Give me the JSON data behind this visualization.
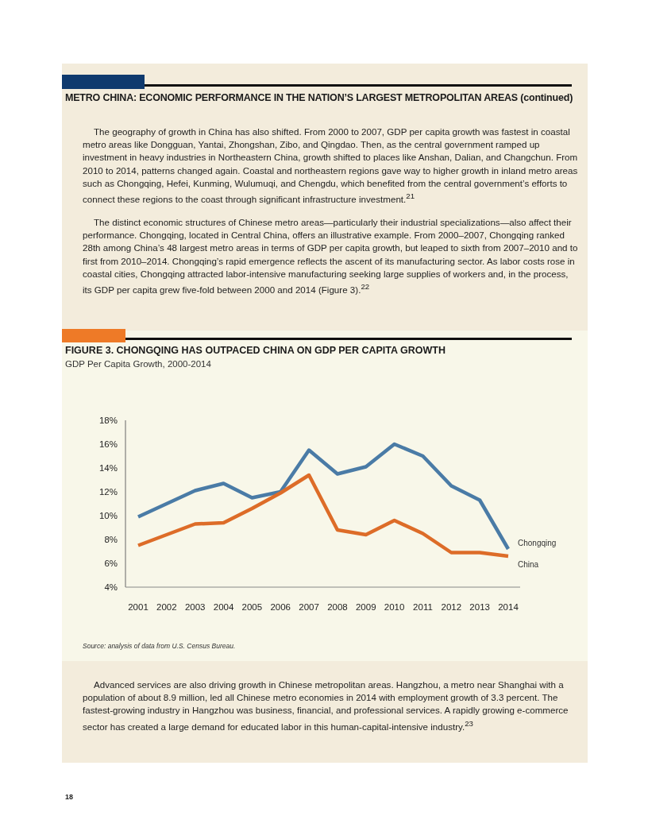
{
  "chart_data": {
    "type": "line",
    "title": "FIGURE 3. CHONGQING HAS OUTPACED CHINA ON GDP PER CAPITA GROWTH",
    "subtitle": "GDP Per Capita Growth, 2000-2014",
    "categories": [
      "2001",
      "2002",
      "2003",
      "2004",
      "2005",
      "2006",
      "2007",
      "2008",
      "2009",
      "2010",
      "2011",
      "2012",
      "2013",
      "2014"
    ],
    "series": [
      {
        "name": "Chongqing",
        "color": "#4a7ba6",
        "values": [
          9.9,
          11.0,
          12.1,
          12.7,
          11.5,
          12.0,
          15.5,
          13.5,
          14.1,
          16.0,
          15.0,
          12.5,
          11.3,
          7.2
        ]
      },
      {
        "name": "China",
        "color": "#dd6c28",
        "values": [
          7.5,
          8.4,
          9.3,
          9.4,
          10.6,
          11.9,
          13.4,
          8.8,
          8.4,
          9.6,
          8.5,
          6.9,
          6.9,
          6.6
        ]
      }
    ],
    "ylim": [
      4,
      18
    ],
    "yticks": [
      {
        "value": 4,
        "label": "4%"
      },
      {
        "value": 6,
        "label": "6%"
      },
      {
        "value": 8,
        "label": "8%"
      },
      {
        "value": 10,
        "label": "10%"
      },
      {
        "value": 12,
        "label": "12%"
      },
      {
        "value": 14,
        "label": "14%"
      },
      {
        "value": 16,
        "label": "16%"
      },
      {
        "value": 18,
        "label": "18%"
      }
    ],
    "grid": false,
    "legend": false,
    "marker": "none",
    "line_style": "solid",
    "annotations": [
      "METRO CHINA: ECONOMIC PERFORMANCE IN THE NATION’S LARGEST METROPOLITAN AREAS (continued)",
      "The geography of growth in China has also shifted. From 2000 to 2007, GDP per capita growth was fastest in coastal metro areas like Dongguan, Yantai, Zhongshan, Zibo, and Qingdao. Then, as the central government ramped up investment in heavy industries in Northeastern China, growth shifted to places like Anshan, Dalian, and Changchun. From 2010 to 2014, patterns changed again. Coastal and northeastern regions gave way to higher growth in inland metro areas such as Chongqing, Hefei, Kunming, Wulumuqi, and Chengdu, which benefited from the central government’s efforts to connect these regions to the coast through significant infrastructure investment.$^{21}$",
      "The distinct economic structures of Chinese metro areas—particularly their industrial specializations—also affect their performance. Chongqing, located in Central China, offers an illustrative example. From 2000–2007, Chongqing ranked 28th among China’s 48 largest metro areas in terms of GDP per capita growth, but leaped to sixth from 2007–2010 and to first from 2010–2014. Chongqing’s rapid emergence reflects the ascent of its manufacturing sector. As labor costs rose in coastal cities, Chongqing attracted labor-intensive manufacturing seeking large supplies of workers and, in the process, its GDP per capita grew five-fold between 2000 and 2014 (Figure 3).$^{22}$",
      "Source: analysis of data from U.S. Census Bureau.",
      "Advanced services are also driving growth in Chinese metropolitan areas. Hangzhou, a metro near Shanghai with a population of about 8.9 million, led all Chinese metro economies in 2014 with employment growth of 3.3 percent. The fastest-growing industry in Hangzhou was business, financial, and professional services. A rapidly growing e-commerce sector has created a large demand for educated labor in this human-capital-intensive industry.$^{23}$",
      "18"
    ]
  }
}
